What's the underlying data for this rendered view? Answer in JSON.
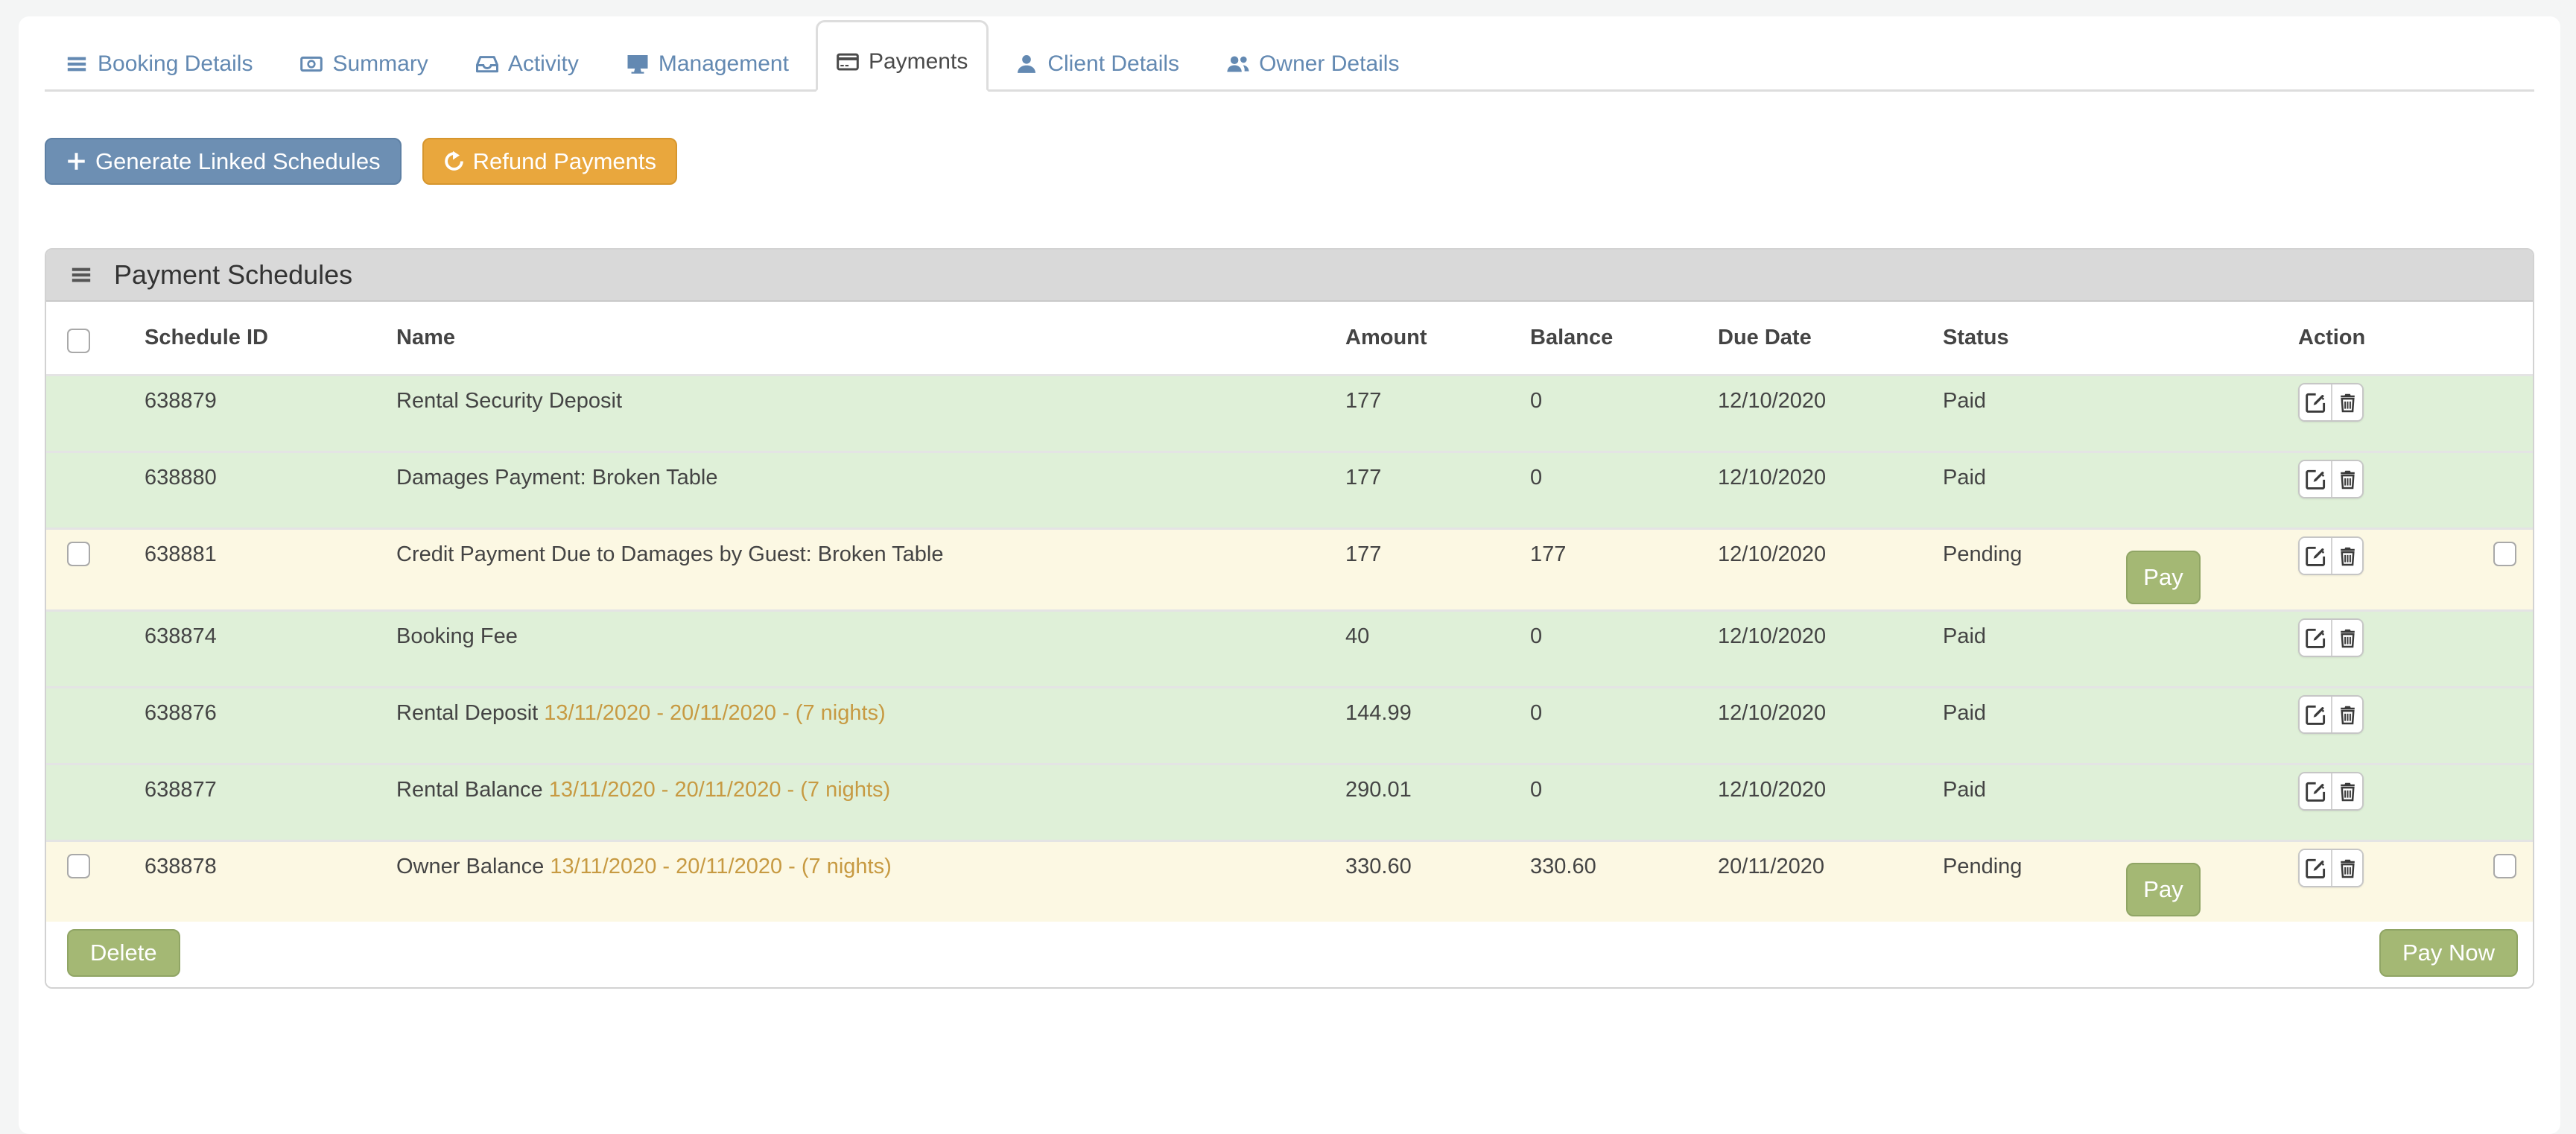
{
  "tabs": [
    {
      "label": "Booking Details",
      "icon": "list-icon",
      "active": false
    },
    {
      "label": "Summary",
      "icon": "banknote-icon",
      "active": false
    },
    {
      "label": "Activity",
      "icon": "inbox-icon",
      "active": false
    },
    {
      "label": "Management",
      "icon": "monitor-icon",
      "active": false
    },
    {
      "label": "Payments",
      "icon": "credit-card-icon",
      "active": true
    },
    {
      "label": "Client Details",
      "icon": "user-icon",
      "active": false
    },
    {
      "label": "Owner Details",
      "icon": "users-icon",
      "active": false
    }
  ],
  "toolbar": {
    "generate_label": "Generate Linked Schedules",
    "generate_icon": "plus-icon",
    "refund_label": "Refund Payments",
    "refund_icon": "refresh-icon"
  },
  "panel": {
    "title": "Payment Schedules",
    "heading_icon": "hamburger-icon",
    "columns": [
      "Schedule ID",
      "Name",
      "Amount",
      "Balance",
      "Due Date",
      "Status",
      "Action"
    ],
    "pay_label": "Pay",
    "delete_label": "Delete",
    "pay_now_label": "Pay Now",
    "action_icons": [
      "edit-icon",
      "trash-icon"
    ],
    "rows": [
      {
        "schedule_id": "638879",
        "name": "Rental Security Deposit",
        "date_range": "",
        "amount": "177",
        "balance": "0",
        "due_date": "12/10/2020",
        "status": "Paid",
        "selectable": false
      },
      {
        "schedule_id": "638880",
        "name": "Damages Payment: Broken Table",
        "date_range": "",
        "amount": "177",
        "balance": "0",
        "due_date": "12/10/2020",
        "status": "Paid",
        "selectable": false
      },
      {
        "schedule_id": "638881",
        "name": "Credit Payment Due to Damages by Guest: Broken Table",
        "date_range": "",
        "amount": "177",
        "balance": "177",
        "due_date": "12/10/2020",
        "status": "Pending",
        "selectable": true
      },
      {
        "schedule_id": "638874",
        "name": "Booking Fee",
        "date_range": "",
        "amount": "40",
        "balance": "0",
        "due_date": "12/10/2020",
        "status": "Paid",
        "selectable": false
      },
      {
        "schedule_id": "638876",
        "name": "Rental Deposit",
        "date_range": "13/11/2020 - 20/11/2020 - (7 nights)",
        "amount": "144.99",
        "balance": "0",
        "due_date": "12/10/2020",
        "status": "Paid",
        "selectable": false
      },
      {
        "schedule_id": "638877",
        "name": "Rental Balance",
        "date_range": "13/11/2020 - 20/11/2020 - (7 nights)",
        "amount": "290.01",
        "balance": "0",
        "due_date": "12/10/2020",
        "status": "Paid",
        "selectable": false
      },
      {
        "schedule_id": "638878",
        "name": "Owner Balance",
        "date_range": "13/11/2020 - 20/11/2020 - (7 nights)",
        "amount": "330.60",
        "balance": "330.60",
        "due_date": "20/11/2020",
        "status": "Pending",
        "selectable": true
      }
    ]
  },
  "colors": {
    "page_background": "#f4f5f5",
    "paid_row": "#dff0d8",
    "pending_row": "#fcf8e3",
    "accent_blue": "#6d8fb3",
    "accent_orange": "#e9a73d",
    "accent_olive": "#a4b874",
    "tab_link": "#6389b2",
    "date_text": "#c79a42"
  }
}
